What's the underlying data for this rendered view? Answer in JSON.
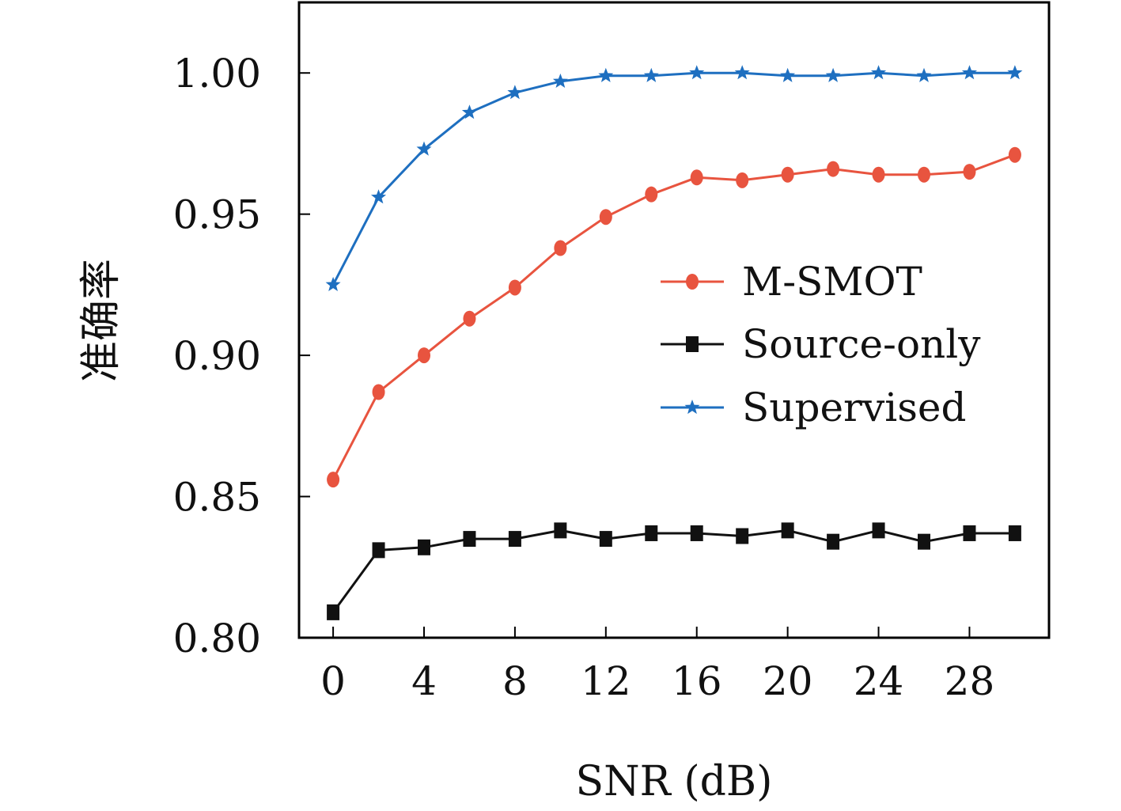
{
  "chart_data": {
    "type": "line",
    "title": "",
    "xlabel": "SNR (dB)",
    "ylabel": "准确率",
    "xlim": [
      -1.5,
      31.5
    ],
    "ylim": [
      0.8,
      1.025
    ],
    "xticks": [
      0,
      4,
      8,
      12,
      16,
      20,
      24,
      28
    ],
    "xtick_labels": [
      "0",
      "4",
      "8",
      "12",
      "16",
      "20",
      "24",
      "28"
    ],
    "yticks": [
      0.8,
      0.85,
      0.9,
      0.95,
      1.0
    ],
    "ytick_labels": [
      "0.80",
      "0.85",
      "0.90",
      "0.95",
      "1.00"
    ],
    "grid": false,
    "legend_position": "center-right",
    "x": [
      0,
      2,
      4,
      6,
      8,
      10,
      12,
      14,
      16,
      18,
      20,
      22,
      24,
      26,
      28,
      30
    ],
    "series": [
      {
        "name": "M-SMOT",
        "color": "#e8543f",
        "marker": "circle",
        "values": [
          0.856,
          0.887,
          0.9,
          0.913,
          0.924,
          0.938,
          0.949,
          0.957,
          0.963,
          0.962,
          0.964,
          0.966,
          0.964,
          0.964,
          0.965,
          0.971
        ]
      },
      {
        "name": "Source-only",
        "color": "#111111",
        "marker": "square",
        "values": [
          0.809,
          0.831,
          0.832,
          0.835,
          0.835,
          0.838,
          0.835,
          0.837,
          0.837,
          0.836,
          0.838,
          0.834,
          0.838,
          0.834,
          0.837,
          0.837
        ]
      },
      {
        "name": "Supervised",
        "color": "#1e6fc0",
        "marker": "star",
        "values": [
          0.925,
          0.956,
          0.973,
          0.986,
          0.993,
          0.997,
          0.999,
          0.999,
          1.0,
          1.0,
          0.999,
          0.999,
          1.0,
          0.999,
          1.0,
          1.0
        ]
      }
    ]
  }
}
